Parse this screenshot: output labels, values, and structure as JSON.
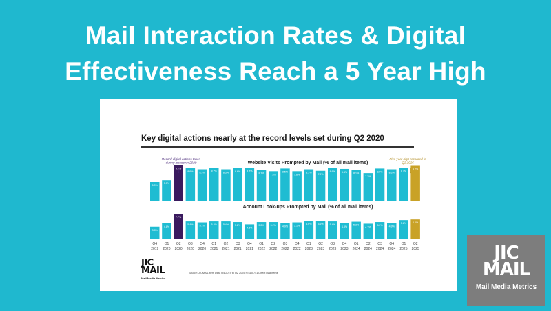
{
  "headline": {
    "line1": "Mail Interaction Rates & Digital",
    "line2": "Effectiveness Reach a 5 Year High"
  },
  "slide": {
    "title": "Key digital actions nearly at the record levels set during Q2 2020",
    "source": "Source: JICMAIL Item Data Q4 2019 to Q2 2025 n=110,741 Direct Mail items",
    "logo_mark_top": "JIC",
    "logo_mark_bottom": "MAIL",
    "logo_tag": "Mail Media Metrics"
  },
  "brand": {
    "mark_top": "JIC",
    "mark_bottom": "MAIL",
    "tag": "Mail Media Metrics"
  },
  "colors": {
    "background": "#1fb8cf",
    "bar": "#1fbcd2",
    "record_bar": "#3a1a5e",
    "recent_high_bar": "#c9a227",
    "record_note": "#4a2a7a",
    "recent_note": "#b08a1f"
  },
  "chart_data": {
    "type": "bar",
    "categories": [
      "Q4 2019",
      "Q1 2020",
      "Q2 2020",
      "Q3 2020",
      "Q4 2020",
      "Q1 2021",
      "Q2 2021",
      "Q3 2021",
      "Q4 2021",
      "Q1 2022",
      "Q2 2022",
      "Q3 2022",
      "Q4 2022",
      "Q1 2023",
      "Q2 2023",
      "Q3 2023",
      "Q4 2023",
      "Q1 2024",
      "Q2 2024",
      "Q3 2024",
      "Q4 2024",
      "Q1 2025",
      "Q2 2025"
    ],
    "tick_labels": [
      [
        "Q4",
        "2019"
      ],
      [
        "Q1",
        "2020"
      ],
      [
        "Q2",
        "2020"
      ],
      [
        "Q3",
        "2020"
      ],
      [
        "Q4",
        "2020"
      ],
      [
        "Q1",
        "2021"
      ],
      [
        "Q2",
        "2021"
      ],
      [
        "Q3",
        "2021"
      ],
      [
        "Q4",
        "2021"
      ],
      [
        "Q1",
        "2022"
      ],
      [
        "Q2",
        "2022"
      ],
      [
        "Q3",
        "2022"
      ],
      [
        "Q4",
        "2022"
      ],
      [
        "Q1",
        "2023"
      ],
      [
        "Q2",
        "2023"
      ],
      [
        "Q3",
        "2023"
      ],
      [
        "Q4",
        "2023"
      ],
      [
        "Q1",
        "2024"
      ],
      [
        "Q2",
        "2024"
      ],
      [
        "Q3",
        "2024"
      ],
      [
        "Q4",
        "2024"
      ],
      [
        "Q1",
        "2025"
      ],
      [
        "Q2",
        "2025"
      ]
    ],
    "ylim": [
      0,
      10
    ],
    "series": [
      {
        "name": "Website Visits Prompted by Mail (% of all mail items)",
        "values": [
          5.0,
          5.5,
          9.4,
          8.6,
          8.3,
          8.7,
          8.3,
          8.6,
          8.7,
          8.1,
          7.8,
          8.5,
          7.8,
          8.3,
          7.9,
          8.6,
          8.4,
          8.1,
          7.3,
          8.5,
          8.3,
          8.7,
          9.2
        ],
        "labels": [
          "5.0%",
          "5.5%",
          "9.4%",
          "8.6%",
          "8.3%",
          "8.7%",
          "8.3%",
          "8.6%",
          "8.7%",
          "8.1%",
          "7.8%",
          "8.5%",
          "7.8%",
          "8.3%",
          "7.9%",
          "8.6%",
          "8.4%",
          "8.1%",
          "7.3%",
          "8.5%",
          "8.3%",
          "8.7%",
          "9.2%"
        ],
        "highlights": {
          "2": "record",
          "22": "recent_high"
        }
      },
      {
        "name": "Account Look-ups Prompted by Mail (% of all mail items)",
        "values": [
          3.8,
          4.8,
          7.7,
          5.4,
          5.1,
          5.4,
          5.4,
          5.2,
          4.5,
          5.2,
          5.2,
          4.9,
          5.1,
          5.6,
          5.6,
          5.4,
          4.8,
          5.3,
          4.7,
          5.2,
          4.9,
          5.8,
          6.0
        ],
        "labels": [
          "3.8%",
          "4.8%",
          "7.7%",
          "5.4%",
          "5.1%",
          "5.4%",
          "5.4%",
          "5.2%",
          "4.5%",
          "5.2%",
          "5.2%",
          "4.9%",
          "5.1%",
          "5.6%",
          "5.6%",
          "5.4%",
          "4.8%",
          "5.3%",
          "4.7%",
          "5.2%",
          "4.9%",
          "5.8%",
          "6.0%"
        ],
        "highlights": {
          "2": "record",
          "22": "recent_high"
        }
      }
    ],
    "annotations": [
      {
        "text_lines": [
          "Record digital actions taken",
          "during lockdown 2020"
        ],
        "category": "Q2 2020"
      },
      {
        "text_lines": [
          "Five year high recorded in",
          "Q2 2025"
        ],
        "category": "Q2 2025"
      }
    ],
    "grid": false,
    "legend": "none"
  }
}
